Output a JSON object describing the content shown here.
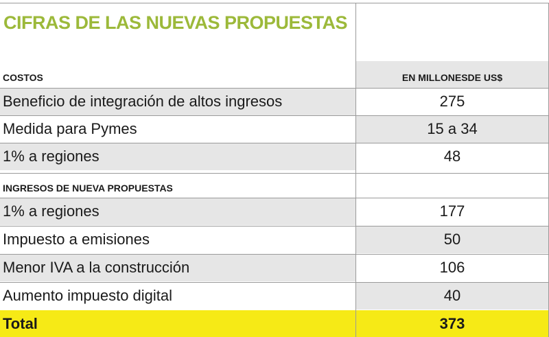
{
  "chart_data": {
    "type": "table",
    "title": "CIFRAS DE LAS NUEVAS PROPUESTAS",
    "columns": [
      "COSTOS",
      "EN MILLONESDE US$"
    ],
    "sections": [
      {
        "heading": "COSTOS",
        "rows": [
          {
            "label": "Beneficio de integración de altos ingresos",
            "value": "275"
          },
          {
            "label": "Medida para Pymes",
            "value": "15 a 34"
          },
          {
            "label": "1% a regiones",
            "value": "48"
          }
        ]
      },
      {
        "heading": "INGRESOS DE NUEVA PROPUESTAS",
        "rows": [
          {
            "label": "1% a regiones",
            "value": "177"
          },
          {
            "label": "Impuesto a emisiones",
            "value": "50"
          },
          {
            "label": "Menor IVA a la construcción",
            "value": "106"
          },
          {
            "label": "Aumento impuesto digital",
            "value": "40"
          }
        ]
      }
    ],
    "total": {
      "label": "Total",
      "value": "373"
    }
  },
  "colors": {
    "title": "#9cb93a",
    "shade": "#e6e6e6",
    "total_bg": "#f6ea16",
    "rule": "#9a9a9a"
  }
}
